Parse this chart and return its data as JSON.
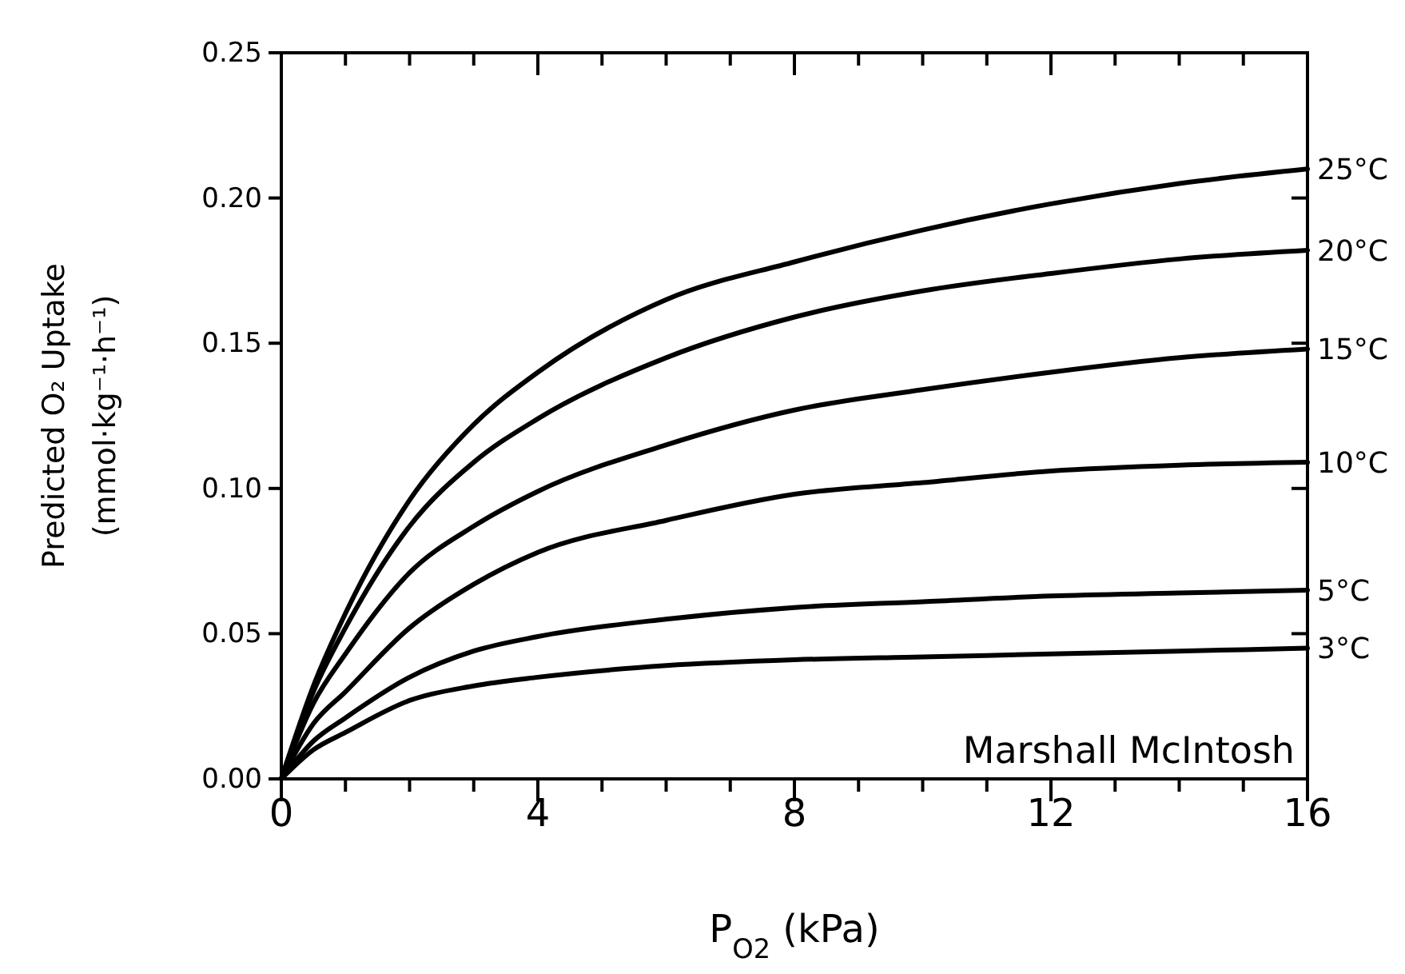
{
  "chart_data": {
    "type": "line",
    "xlabel": "P$_{O2}$ (kPa)",
    "ylabel": "Predicted O₂ Uptake\n(mmol·kg⁻¹·h⁻¹)",
    "x": [
      0,
      0.5,
      1,
      2,
      3,
      4,
      6,
      8,
      10,
      12,
      14,
      16
    ],
    "series": [
      {
        "name": "25°C",
        "color": "#000000",
        "values": [
          0,
          0.032,
          0.057,
          0.096,
          0.122,
          0.14,
          0.165,
          0.178,
          0.189,
          0.198,
          0.205,
          0.21
        ]
      },
      {
        "name": "20°C",
        "color": "#000000",
        "values": [
          0,
          0.03,
          0.052,
          0.087,
          0.109,
          0.124,
          0.145,
          0.159,
          0.168,
          0.174,
          0.179,
          0.182
        ]
      },
      {
        "name": "15°C",
        "color": "#000000",
        "values": [
          0,
          0.026,
          0.043,
          0.071,
          0.087,
          0.099,
          0.115,
          0.127,
          0.134,
          0.14,
          0.145,
          0.148
        ]
      },
      {
        "name": "10°C",
        "color": "#000000",
        "values": [
          0,
          0.019,
          0.03,
          0.052,
          0.067,
          0.078,
          0.089,
          0.098,
          0.102,
          0.106,
          0.108,
          0.109
        ]
      },
      {
        "name": "5°C",
        "color": "#000000",
        "values": [
          0,
          0.013,
          0.021,
          0.035,
          0.044,
          0.049,
          0.055,
          0.059,
          0.061,
          0.063,
          0.064,
          0.065
        ]
      },
      {
        "name": "3°C",
        "color": "#000000",
        "values": [
          0,
          0.01,
          0.016,
          0.027,
          0.032,
          0.035,
          0.039,
          0.041,
          0.042,
          0.043,
          0.044,
          0.045
        ]
      }
    ],
    "xlim": [
      0,
      16
    ],
    "xticks": [
      0,
      {
        "value": 1,
        "label": null
      },
      {
        "value": 2,
        "label": null
      },
      {
        "value": 3,
        "label": null
      },
      4,
      {
        "value": 5,
        "label": null
      },
      {
        "value": 6,
        "label": null
      },
      {
        "value": 7,
        "label": null
      },
      8,
      {
        "value": 9,
        "label": null
      },
      {
        "value": 10,
        "label": null
      },
      {
        "value": 11,
        "label": null
      },
      12,
      {
        "value": 13,
        "label": null
      },
      {
        "value": 14,
        "label": null
      },
      {
        "value": 15,
        "label": null
      },
      16
    ],
    "ylim": [
      0,
      0.25
    ],
    "yticks": [
      {
        "value": 0,
        "label": "0.00"
      },
      {
        "value": 0.05,
        "label": "0.05"
      },
      {
        "value": 0.1,
        "label": "0.10"
      },
      {
        "value": 0.15,
        "label": "0.15"
      },
      {
        "value": 0.2,
        "label": "0.20"
      },
      {
        "value": 0.25,
        "label": "0.25"
      }
    ],
    "annotations": [
      "Marshall McIntosh"
    ],
    "grid": false,
    "legend": "right",
    "marker": "none",
    "line_style": "solid"
  }
}
